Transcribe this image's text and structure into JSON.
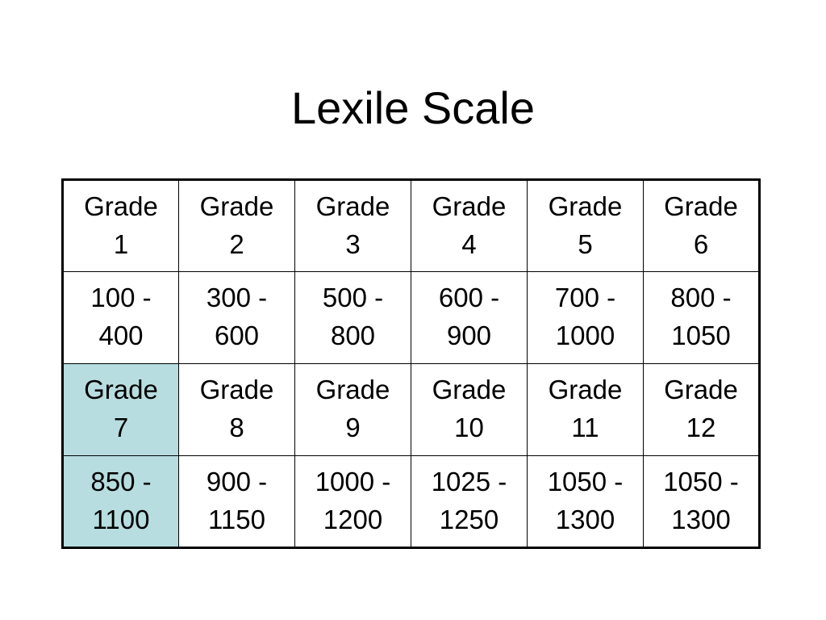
{
  "title": "Lexile Scale",
  "highlight_color": "#b7dde0",
  "rows": [
    {
      "kind": "grade",
      "cells": [
        {
          "line1": "Grade",
          "line2": "1",
          "highlight": false
        },
        {
          "line1": "Grade",
          "line2": "2",
          "highlight": false
        },
        {
          "line1": "Grade",
          "line2": "3",
          "highlight": false
        },
        {
          "line1": "Grade",
          "line2": "4",
          "highlight": false
        },
        {
          "line1": "Grade",
          "line2": "5",
          "highlight": false
        },
        {
          "line1": "Grade",
          "line2": "6",
          "highlight": false
        }
      ]
    },
    {
      "kind": "range",
      "cells": [
        {
          "line1": "100 -",
          "line2": "400",
          "highlight": false
        },
        {
          "line1": "300 -",
          "line2": "600",
          "highlight": false
        },
        {
          "line1": "500 -",
          "line2": "800",
          "highlight": false
        },
        {
          "line1": "600 -",
          "line2": "900",
          "highlight": false
        },
        {
          "line1": "700 -",
          "line2": "1000",
          "highlight": false
        },
        {
          "line1": "800 -",
          "line2": "1050",
          "highlight": false
        }
      ]
    },
    {
      "kind": "grade",
      "cells": [
        {
          "line1": "Grade",
          "line2": "7",
          "highlight": true
        },
        {
          "line1": "Grade",
          "line2": "8",
          "highlight": false
        },
        {
          "line1": "Grade",
          "line2": "9",
          "highlight": false
        },
        {
          "line1": "Grade",
          "line2": "10",
          "highlight": false
        },
        {
          "line1": "Grade",
          "line2": "11",
          "highlight": false
        },
        {
          "line1": "Grade",
          "line2": "12",
          "highlight": false
        }
      ]
    },
    {
      "kind": "range",
      "cells": [
        {
          "line1": "850 -",
          "line2": "1100",
          "highlight": true
        },
        {
          "line1": "900 -",
          "line2": "1150",
          "highlight": false
        },
        {
          "line1": "1000 -",
          "line2": "1200",
          "highlight": false
        },
        {
          "line1": "1025 -",
          "line2": "1250",
          "highlight": false
        },
        {
          "line1": "1050 -",
          "line2": "1300",
          "highlight": false
        },
        {
          "line1": "1050 -",
          "line2": "1300",
          "highlight": false
        }
      ]
    }
  ]
}
